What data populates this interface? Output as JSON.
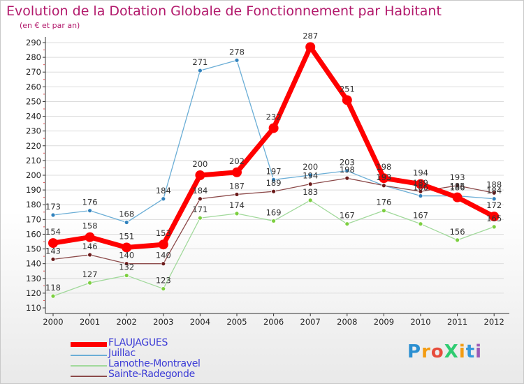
{
  "title": "Evolution de la Dotation Globale de Fonctionnement par Habitant",
  "subtitle": "(en € et par an)",
  "logo": {
    "text": "ProXiti",
    "letter_colors": [
      "#2b8fd1",
      "#f39c12",
      "#e74c3c",
      "#2ecc71",
      "#f39c12",
      "#3498db",
      "#9b59b6"
    ]
  },
  "colors": {
    "axis": "#333333",
    "grid": "#dcdcdc",
    "title": "#b2186b"
  },
  "chart_data": {
    "type": "line",
    "title": "Evolution de la Dotation Globale de Fonctionnement par Habitant",
    "subtitle": "(en € et par an)",
    "xlabel": "",
    "ylabel": "",
    "x": [
      "2000",
      "2001",
      "2002",
      "2003",
      "2004",
      "2005",
      "2006",
      "2007",
      "2008",
      "2009",
      "2010",
      "2011",
      "2012"
    ],
    "ylim": [
      110,
      290
    ],
    "yticks": [
      110,
      120,
      130,
      140,
      150,
      160,
      170,
      180,
      190,
      200,
      210,
      220,
      230,
      240,
      250,
      260,
      270,
      280,
      290
    ],
    "grid": true,
    "legend_position": "bottom-left",
    "series": [
      {
        "name": "FLAUJAGUES",
        "color": "#ff0000",
        "marker_color": "#ff0000",
        "width": 7,
        "marker_r": 7,
        "values": [
          154,
          158,
          151,
          153,
          200,
          202,
          232,
          287,
          251,
          198,
          194,
          185,
          172
        ],
        "labels": [
          "154",
          "158",
          "151",
          "153",
          "200",
          "202",
          "232",
          "287",
          "251",
          "198",
          "194",
          "185",
          "172"
        ]
      },
      {
        "name": "Juillac",
        "color": "#6baed6",
        "marker_color": "#3182bd",
        "width": 1.3,
        "marker_r": 3,
        "values": [
          173,
          176,
          168,
          184,
          271,
          278,
          197,
          200,
          203,
          193,
          186,
          186,
          184
        ],
        "labels": [
          "173",
          "176",
          "168",
          "184",
          "271",
          "278",
          "197",
          "200",
          "203",
          "193",
          "186",
          "186",
          "184"
        ]
      },
      {
        "name": "Lamothe-Montravel",
        "color": "#a1d99b",
        "marker_color": "#7ccf3f",
        "width": 1.3,
        "marker_r": 3,
        "values": [
          118,
          127,
          132,
          123,
          171,
          174,
          169,
          183,
          167,
          176,
          167,
          156,
          165
        ],
        "labels": [
          "118",
          "127",
          "132",
          "123",
          "171",
          "174",
          "169",
          "183",
          "167",
          "176",
          "167",
          "156",
          "165"
        ]
      },
      {
        "name": "Sainte-Radegonde",
        "color": "#8c4a4a",
        "marker_color": "#6b1a1a",
        "width": 1.3,
        "marker_r": 3,
        "values": [
          143,
          146,
          140,
          140,
          184,
          187,
          189,
          194,
          198,
          193,
          189,
          193,
          188
        ],
        "labels": [
          "143",
          "146",
          "140",
          "140",
          "184",
          "187",
          "189",
          "194",
          "198",
          "193",
          "189",
          "193",
          "188"
        ]
      }
    ]
  }
}
